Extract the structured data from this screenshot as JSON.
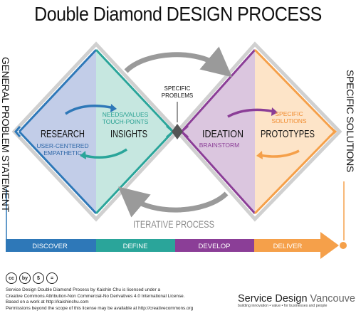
{
  "title": "Double Diamond DESIGN PROCESS",
  "left_label": "GENERAL PROBLEM STATEMENT",
  "right_label": "SPECIFIC SOLUTIONS",
  "specific_problems": [
    "SPECIFIC",
    "PROBLEMS"
  ],
  "iterative": "ITERATIVE PROCESS",
  "quadrants": {
    "research": {
      "title": "RESEARCH",
      "sub": [
        "USER-CENTERED",
        "EMPATHETIC"
      ]
    },
    "insights": {
      "title": "INSIGHTS",
      "sub": [
        "NEEDS/VALUES",
        "TOUCH-POINTS"
      ]
    },
    "ideation": {
      "title": "IDEATION",
      "sub": [
        "BRAINSTORM"
      ]
    },
    "prototypes": {
      "title": "PROTOTYPES",
      "sub": [
        "SPECIFIC",
        "SOLUTIONS"
      ]
    }
  },
  "phases": [
    "DISCOVER",
    "DEFINE",
    "DEVELOP",
    "DELIVER"
  ],
  "colors": {
    "discover": "#2e78b8",
    "define": "#2aa59a",
    "develop": "#8b3e97",
    "deliver": "#f5a04a",
    "research_fill": "#c2cde8",
    "insights_fill": "#c6e7e0",
    "ideation_fill": "#dbc6df",
    "prototypes_fill": "#fde4c8",
    "research_text": "#2e67a8",
    "insights_text": "#27a091",
    "ideation_text": "#8b3e97",
    "prototypes_text": "#f08b2e"
  },
  "cc_icons": [
    "cc",
    "by",
    "$",
    "="
  ],
  "license": [
    "Service Design Double Diamond Process by Kaishin Chu is licensed under a",
    "Creative Commons Attribution-Non Commercial-No Derivatives 4.0 International License.",
    "Based on a work at http://kaishinchu.com",
    "Permissions beyond the scope of this license may be available at http://creativecommons.org"
  ],
  "brand": {
    "name_main": "Service Design",
    "name_sub": "Vancouver",
    "tagline": "building innovation • value • for businesses and people"
  }
}
